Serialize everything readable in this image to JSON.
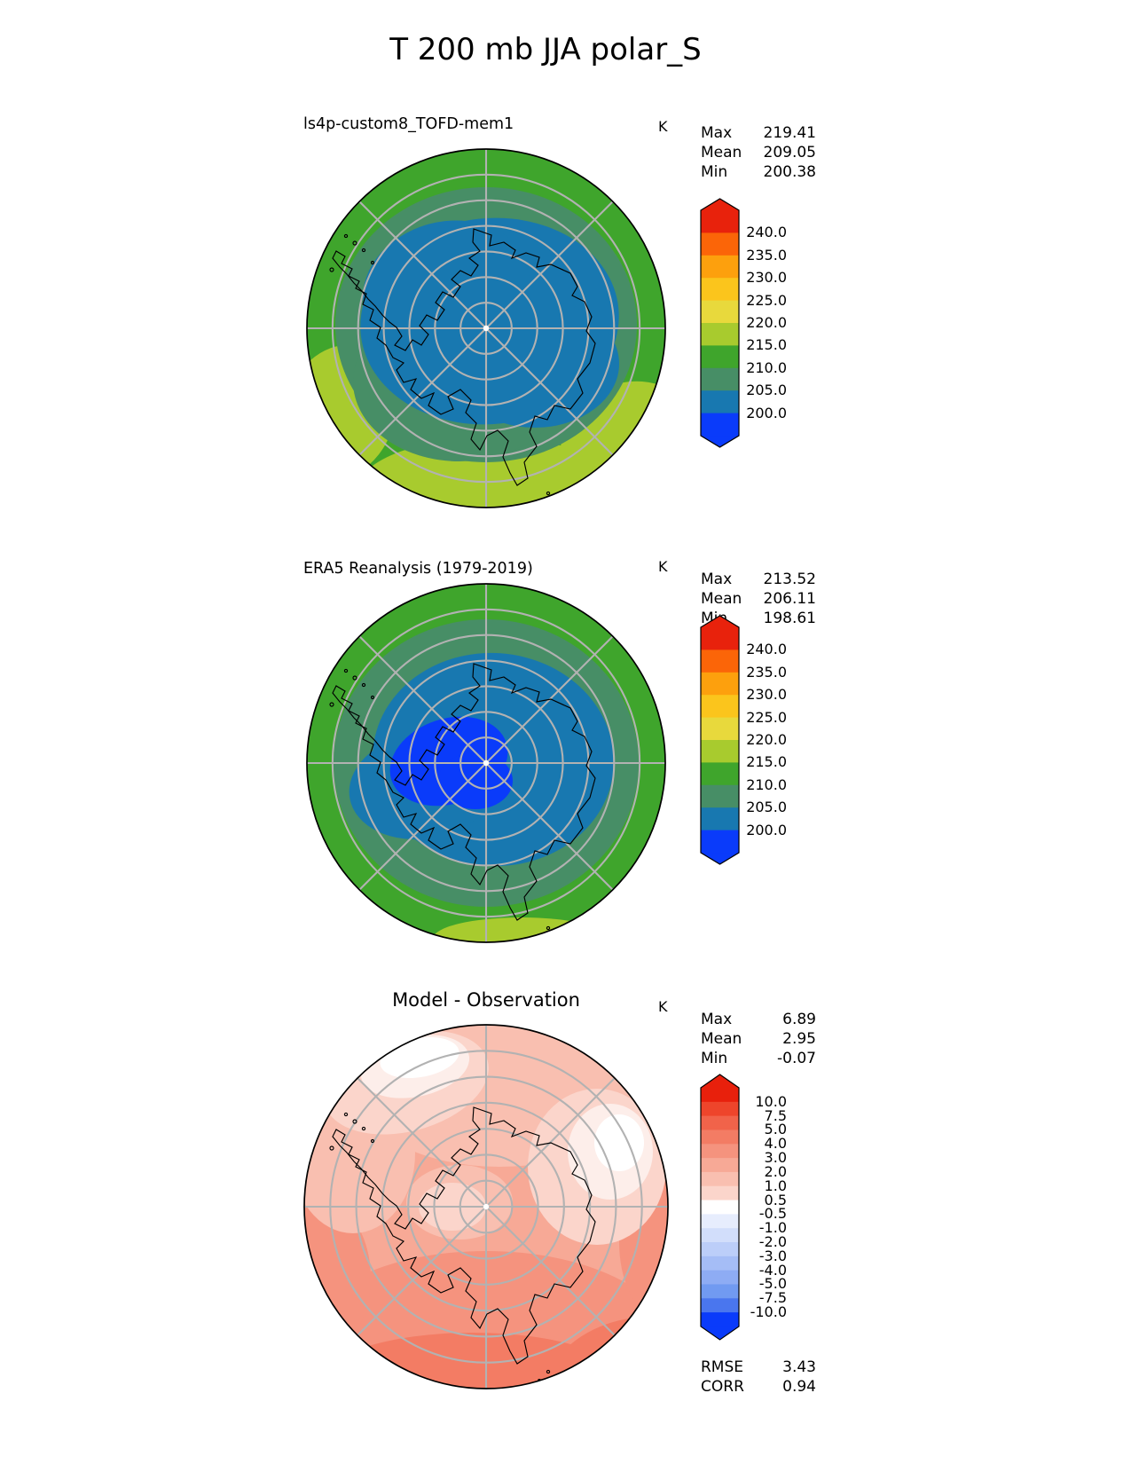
{
  "title": "T 200 mb JJA polar_S",
  "panels": [
    {
      "subtitle": "ls4p-custom8_TOFD-mem1",
      "units": "K",
      "stats": [
        {
          "label": "Max",
          "value": "219.41"
        },
        {
          "label": "Mean",
          "value": "209.05"
        },
        {
          "label": "Min",
          "value": "200.38"
        }
      ],
      "colorbar": {
        "ticks": [
          "240.0",
          "235.0",
          "230.0",
          "225.0",
          "220.0",
          "215.0",
          "210.0",
          "205.0",
          "200.0"
        ],
        "colors": [
          "#e8220c",
          "#fb6508",
          "#fda00d",
          "#fbc51c",
          "#e8d93c",
          "#a8cb2e",
          "#3fa52c",
          "#478e66",
          "#1878b0",
          "#0a3bfa"
        ],
        "extend": "both"
      }
    },
    {
      "subtitle": "ERA5 Reanalysis (1979-2019)",
      "units": "K",
      "stats": [
        {
          "label": "Max",
          "value": "213.52"
        },
        {
          "label": "Mean",
          "value": "206.11"
        },
        {
          "label": "Min",
          "value": "198.61"
        }
      ],
      "colorbar": {
        "ticks": [
          "240.0",
          "235.0",
          "230.0",
          "225.0",
          "220.0",
          "215.0",
          "210.0",
          "205.0",
          "200.0"
        ],
        "colors": [
          "#e8220c",
          "#fb6508",
          "#fda00d",
          "#fbc51c",
          "#e8d93c",
          "#a8cb2e",
          "#3fa52c",
          "#478e66",
          "#1878b0",
          "#0a3bfa"
        ],
        "extend": "both"
      }
    },
    {
      "subtitle": "Model - Observation",
      "units": "K",
      "stats": [
        {
          "label": "Max",
          "value": "6.89"
        },
        {
          "label": "Mean",
          "value": "2.95"
        },
        {
          "label": "Min",
          "value": "-0.07"
        }
      ],
      "colorbar": {
        "ticks": [
          "10.0",
          "7.5",
          "5.0",
          "4.0",
          "3.0",
          "2.0",
          "1.0",
          "0.5",
          "-0.5",
          "-1.0",
          "-2.0",
          "-3.0",
          "-4.0",
          "-5.0",
          "-7.5",
          "-10.0"
        ],
        "colors": [
          "#e8200c",
          "#ee452b",
          "#f1634a",
          "#f37c64",
          "#f5937e",
          "#f7a996",
          "#f9bfb0",
          "#fbd5cb",
          "#ffffff",
          "#e7edfd",
          "#d2defb",
          "#bccef9",
          "#a5bdf6",
          "#8eacf4",
          "#719af1",
          "#4a76ee",
          "#0a3bfa"
        ],
        "extend": "both"
      },
      "extra_stats": [
        {
          "label": "RMSE",
          "value": "3.43"
        },
        {
          "label": "CORR",
          "value": "0.94"
        }
      ]
    }
  ],
  "chart_data": [
    {
      "type": "heatmap",
      "subtype": "filled_contour_polar_map",
      "projection": "south polar stereographic",
      "title": "ls4p-custom8_TOFD-mem1",
      "variable": "T 200 mb JJA",
      "units": "K",
      "contour_levels": [
        200,
        205,
        210,
        215,
        220,
        225,
        230,
        235,
        240
      ],
      "colorbar_extend": "both",
      "stats": {
        "max": 219.41,
        "mean": 209.05,
        "min": 200.38
      },
      "legend_position": "right"
    },
    {
      "type": "heatmap",
      "subtype": "filled_contour_polar_map",
      "projection": "south polar stereographic",
      "title": "ERA5 Reanalysis (1979-2019)",
      "variable": "T 200 mb JJA",
      "units": "K",
      "contour_levels": [
        200,
        205,
        210,
        215,
        220,
        225,
        230,
        235,
        240
      ],
      "colorbar_extend": "both",
      "stats": {
        "max": 213.52,
        "mean": 206.11,
        "min": 198.61
      },
      "legend_position": "right"
    },
    {
      "type": "heatmap",
      "subtype": "filled_contour_polar_map",
      "projection": "south polar stereographic",
      "title": "Model - Observation",
      "variable": "T 200 mb JJA difference",
      "units": "K",
      "contour_levels": [
        -10,
        -7.5,
        -5,
        -4,
        -3,
        -2,
        -1,
        -0.5,
        0.5,
        1,
        2,
        3,
        4,
        5,
        7.5,
        10
      ],
      "colorbar_extend": "both",
      "stats": {
        "max": 6.89,
        "mean": 2.95,
        "min": -0.07
      },
      "rmse": 3.43,
      "corr": 0.94,
      "legend_position": "right"
    }
  ]
}
